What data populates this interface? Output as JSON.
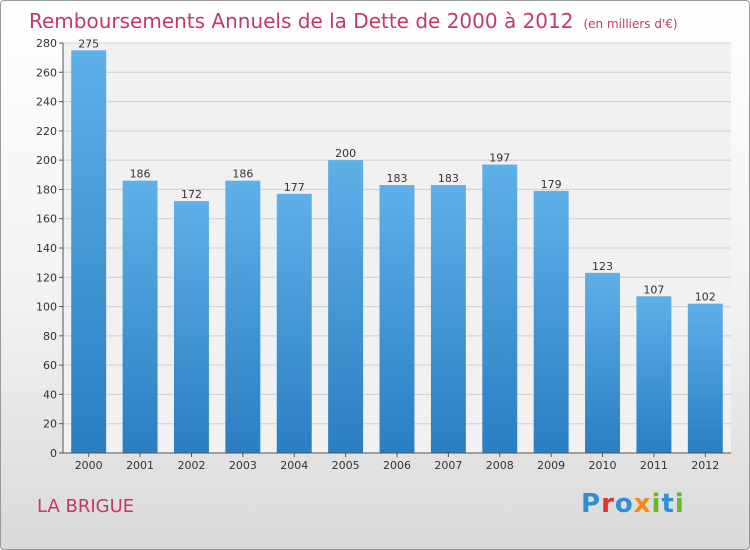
{
  "title": "Remboursements Annuels de la Dette de 2000 à 2012",
  "subtitle": "(en milliers d'€)",
  "commune": "LA BRIGUE",
  "logo_text": "Proxiti",
  "colors": {
    "title": "#c0396a",
    "bar_top": "#5eb0e8",
    "bar_bottom": "#2a7ec2",
    "logo": [
      "#2f8fd6",
      "#e0322f",
      "#2f8fd6",
      "#f28a1c",
      "#6ab52c",
      "#2f8fd6",
      "#6ab52c"
    ]
  },
  "chart_data": {
    "type": "bar",
    "categories": [
      "2000",
      "2001",
      "2002",
      "2003",
      "2004",
      "2005",
      "2006",
      "2007",
      "2008",
      "2009",
      "2010",
      "2011",
      "2012"
    ],
    "values": [
      275,
      186,
      172,
      186,
      177,
      200,
      183,
      183,
      197,
      179,
      123,
      107,
      102
    ],
    "data_labels": [
      "275",
      "186",
      "172",
      "186",
      "177",
      "200",
      "183",
      "183",
      "197",
      "179",
      "123",
      "107",
      "102"
    ],
    "ylim": [
      0,
      280
    ],
    "yticks": [
      0,
      20,
      40,
      60,
      80,
      100,
      120,
      140,
      160,
      180,
      200,
      220,
      240,
      260,
      280
    ],
    "grid": true,
    "xlabel": "",
    "ylabel": ""
  }
}
